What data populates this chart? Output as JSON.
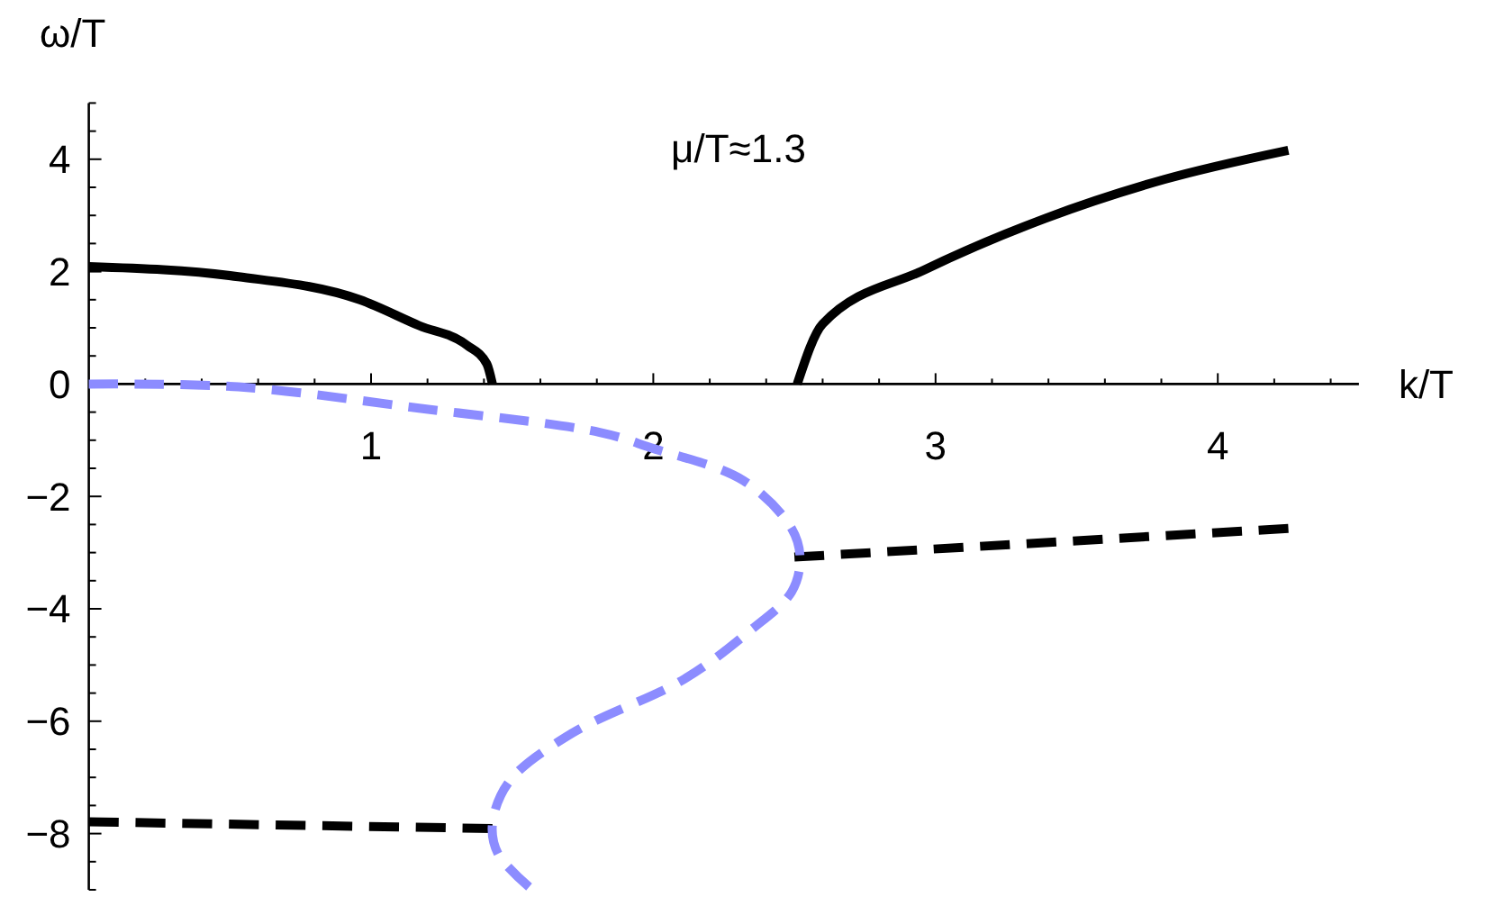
{
  "chart_data": {
    "type": "line",
    "xlabel": "k/T",
    "ylabel": "ω/T",
    "annotations": [
      "μ/T≈1.3"
    ],
    "xlim": [
      0,
      4.5
    ],
    "ylim": [
      -9,
      5
    ],
    "xticks": [
      {
        "value": 0.2,
        "label": null
      },
      {
        "value": 0.4,
        "label": null
      },
      {
        "value": 0.6,
        "label": null
      },
      {
        "value": 0.8,
        "label": null
      },
      1,
      {
        "value": 1.2,
        "label": null
      },
      {
        "value": 1.4,
        "label": null
      },
      {
        "value": 1.6,
        "label": null
      },
      {
        "value": 1.8,
        "label": null
      },
      2,
      {
        "value": 2.2,
        "label": null
      },
      {
        "value": 2.4,
        "label": null
      },
      {
        "value": 2.6,
        "label": null
      },
      {
        "value": 2.8,
        "label": null
      },
      3,
      {
        "value": 3.2,
        "label": null
      },
      {
        "value": 3.4,
        "label": null
      },
      {
        "value": 3.6,
        "label": null
      },
      {
        "value": 3.8,
        "label": null
      },
      4,
      {
        "value": 4.2,
        "label": null
      },
      {
        "value": 4.4,
        "label": null
      }
    ],
    "yticks": [
      {
        "value": -9,
        "label": null
      },
      {
        "value": -8.5,
        "label": null
      },
      {
        "value": -8,
        "label": "−8"
      },
      {
        "value": -7.5,
        "label": null
      },
      {
        "value": -7,
        "label": null
      },
      {
        "value": -6.5,
        "label": null
      },
      {
        "value": -6,
        "label": "−6"
      },
      {
        "value": -5.5,
        "label": null
      },
      {
        "value": -5,
        "label": null
      },
      {
        "value": -4.5,
        "label": null
      },
      {
        "value": -4,
        "label": "−4"
      },
      {
        "value": -3.5,
        "label": null
      },
      {
        "value": -3,
        "label": null
      },
      {
        "value": -2.5,
        "label": null
      },
      {
        "value": -2,
        "label": "−2"
      },
      {
        "value": -1.5,
        "label": null
      },
      {
        "value": -1,
        "label": null
      },
      {
        "value": -0.5,
        "label": null
      },
      0,
      {
        "value": 0.5,
        "label": null
      },
      {
        "value": 1,
        "label": null
      },
      {
        "value": 1.5,
        "label": null
      },
      2,
      {
        "value": 2.5,
        "label": null
      },
      {
        "value": 3,
        "label": null
      },
      {
        "value": 3.5,
        "label": null
      },
      4,
      {
        "value": 4.5,
        "label": null
      },
      {
        "value": 5,
        "label": null
      }
    ],
    "grid": false,
    "marker": "none",
    "series": [
      {
        "color": "#000000",
        "line_style": "solid",
        "x": [
          0,
          0.53,
          0.96,
          1.17,
          1.34,
          1.41,
          1.43
        ],
        "values": [
          2.09,
          1.91,
          1.5,
          1.04,
          0.69,
          0.36,
          0
        ]
      },
      {
        "color": "#000000",
        "line_style": "solid",
        "x": [
          2.51,
          2.6,
          2.96,
          3.39,
          3.81,
          4.25
        ],
        "values": [
          0,
          1.07,
          2.03,
          2.95,
          3.64,
          4.16
        ]
      },
      {
        "color": "#000000",
        "line_style": "dashed",
        "x": [
          2.5,
          4.25
        ],
        "values": [
          -3.08,
          -2.57
        ]
      },
      {
        "color": "#000000",
        "line_style": "dashed",
        "x": [
          0,
          1.43
        ],
        "values": [
          -7.79,
          -7.91
        ]
      },
      {
        "color": "#8c8cff",
        "line_style": "dashed",
        "x": [
          0,
          0.53,
          1.17,
          1.81,
          1.99,
          2.32,
          2.49,
          2.52,
          2.49,
          2.34,
          2.11,
          1.71,
          1.49,
          1.43,
          1.45,
          1.56
        ],
        "values": [
          0,
          -0.05,
          -0.43,
          -0.86,
          -1.13,
          -1.72,
          -2.57,
          -3.11,
          -3.7,
          -4.4,
          -5.25,
          -6.22,
          -7.07,
          -7.83,
          -8.36,
          -8.95
        ]
      }
    ]
  }
}
